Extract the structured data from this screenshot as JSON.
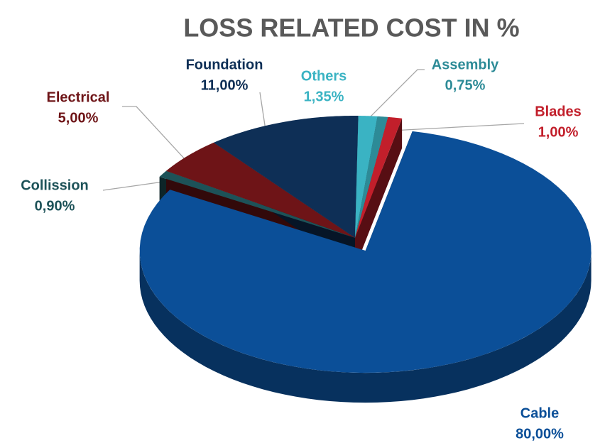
{
  "chart_data": {
    "type": "pie",
    "title": "LOSS RELATED COST IN %",
    "categories": [
      "Cable",
      "Collission",
      "Electrical",
      "Foundation",
      "Others",
      "Assembly",
      "Blades"
    ],
    "values": [
      80,
      0.9,
      5,
      11,
      1.35,
      0.75,
      1
    ],
    "value_labels": [
      "80,00%",
      "0,90%",
      "5,00%",
      "11,00%",
      "1,35%",
      "0,75%",
      "1,00%"
    ],
    "colors": [
      "#0b4f98",
      "#1d5258",
      "#6e1417",
      "#0e2f56",
      "#3ab3c3",
      "#2d8b97",
      "#c21f2b"
    ]
  }
}
